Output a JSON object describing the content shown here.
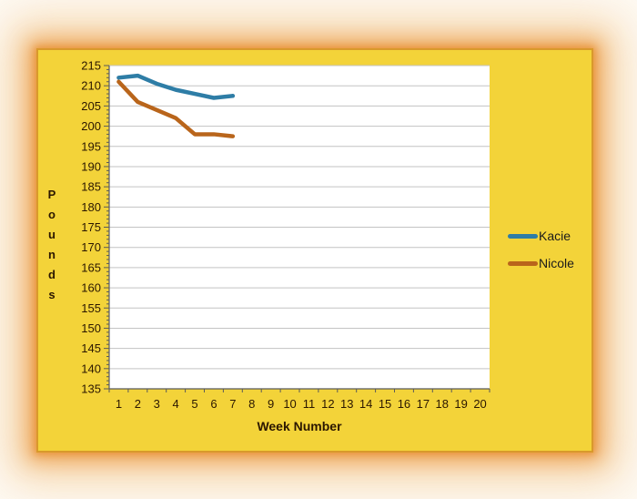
{
  "chart_data": {
    "type": "line",
    "title": "",
    "xlabel": "Week Number",
    "ylabel": "Pounds",
    "xticks": [
      "1",
      "2",
      "3",
      "4",
      "5",
      "6",
      "7",
      "8",
      "9",
      "10",
      "11",
      "12",
      "13",
      "14",
      "15",
      "16",
      "17",
      "18",
      "19",
      "20"
    ],
    "x_count": 20,
    "yticks": [
      215,
      210,
      205,
      200,
      195,
      190,
      185,
      180,
      175,
      170,
      165,
      160,
      155,
      150,
      145,
      140,
      135
    ],
    "ylim": [
      135,
      215
    ],
    "ytick_step": 5,
    "yminor_step": 1,
    "grid": "horizontal",
    "legend_position": "right",
    "plot_bg": "#FFFFFF",
    "panel_bg": "#F3D339",
    "panel_border": "#D9992B",
    "series": [
      {
        "name": "Kacie",
        "color": "#2E7DA6",
        "x": [
          1,
          2,
          3,
          4,
          5,
          6,
          7
        ],
        "values": [
          212,
          212.5,
          210.5,
          209,
          208,
          207,
          207.5
        ]
      },
      {
        "name": "Nicole",
        "color": "#B9651B",
        "x": [
          1,
          2,
          3,
          4,
          5,
          6,
          7
        ],
        "values": [
          211,
          206,
          204,
          202,
          198,
          198,
          197.5
        ]
      }
    ]
  }
}
